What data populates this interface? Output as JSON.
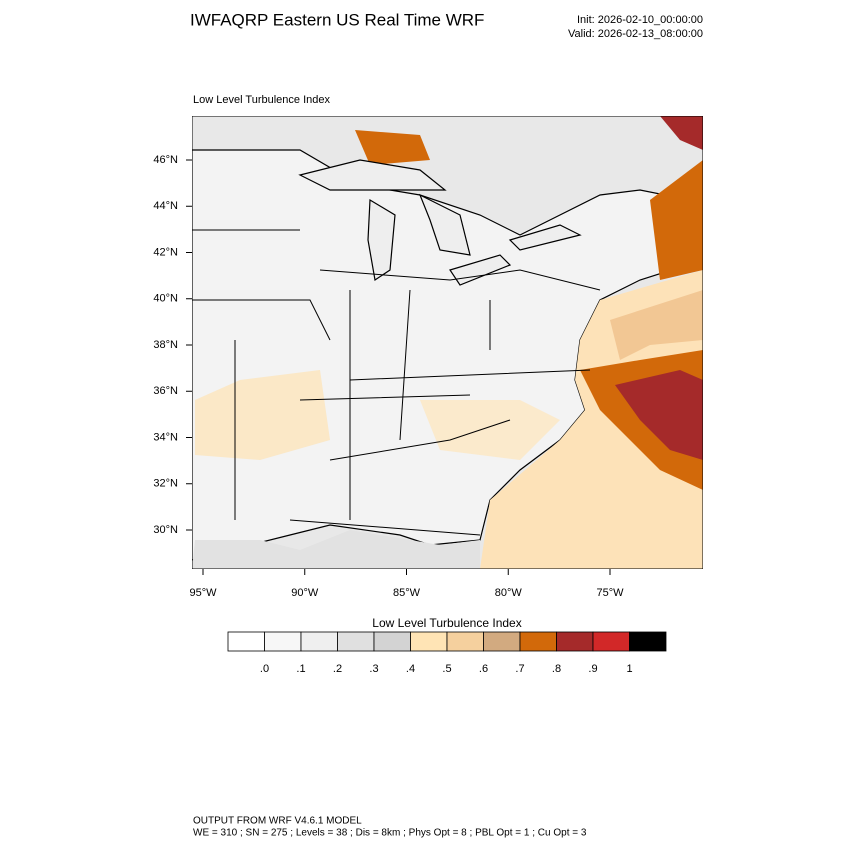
{
  "header": {
    "title": "IWFAQRP Eastern US Real Time WRF",
    "init": "Init: 2026-02-10_00:00:00",
    "valid": "Valid: 2026-02-13_08:00:00"
  },
  "map": {
    "label": "Low Level Turbulence Index",
    "lat_labels": [
      "46°N",
      "44°N",
      "42°N",
      "40°N",
      "38°N",
      "36°N",
      "34°N",
      "32°N",
      "30°N"
    ],
    "lon_labels": [
      "95°W",
      "90°W",
      "85°W",
      "80°W",
      "75°W"
    ]
  },
  "colorbar": {
    "title": "Low Level Turbulence Index",
    "colors": [
      "#ffffff",
      "#f7f7f7",
      "#efefef",
      "#e0e0e0",
      "#d3d3d3",
      "#ffe4b5",
      "#f5d09e",
      "#d2aa80",
      "#d2690a",
      "#a52a2a",
      "#d22828",
      "#000000"
    ],
    "labels": [
      ".0",
      ".1",
      ".2",
      ".3",
      ".4",
      ".5",
      ".6",
      ".7",
      ".8",
      ".9",
      "1"
    ]
  },
  "footer": {
    "line1": "OUTPUT FROM WRF V4.6.1 MODEL",
    "line2": "WE = 310 ; SN = 275 ; Levels = 38 ; Dis = 8km ; Phys Opt = 8 ; PBL Opt = 1 ; Cu Opt = 3"
  }
}
